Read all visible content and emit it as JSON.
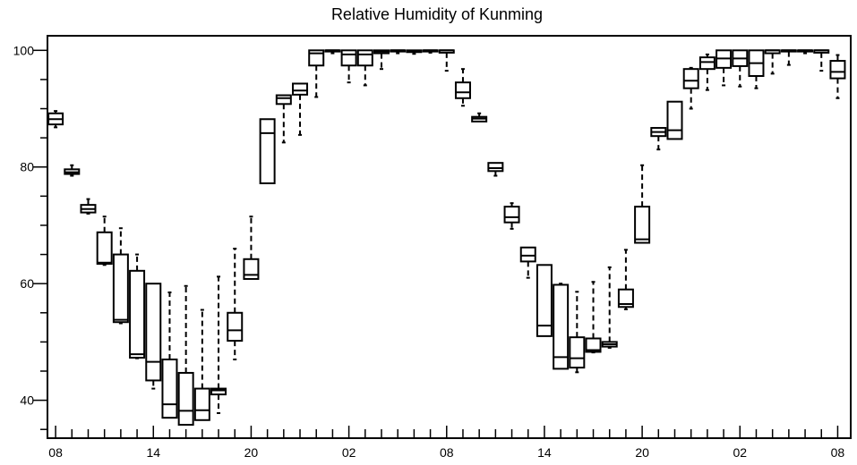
{
  "chart_data": {
    "type": "box",
    "title": "Relative Humidity of Kunming",
    "xlabel": "",
    "ylabel": "",
    "ylim": [
      33.5,
      102.5
    ],
    "y_major_ticks": [
      40,
      60,
      80,
      100
    ],
    "y_minor_step": 5,
    "x_tick_labels": [
      "08",
      "14",
      "20",
      "02",
      "08",
      "14",
      "20",
      "02",
      "08"
    ],
    "x_label_hours": [
      0,
      6,
      12,
      18,
      24,
      30,
      36,
      42,
      48
    ],
    "hour_range": [
      -0.5,
      48.8
    ],
    "grid": false,
    "legend": "none",
    "series": [
      {
        "hour": 0,
        "whisker_low": 86.8,
        "q1": 87.3,
        "median": 88.2,
        "q3": 89.2,
        "whisker_high": 89.6
      },
      {
        "hour": 1,
        "whisker_low": 78.5,
        "q1": 78.8,
        "median": 79.1,
        "q3": 79.6,
        "whisker_high": 80.3
      },
      {
        "hour": 2,
        "whisker_low": 72.0,
        "q1": 72.2,
        "median": 72.8,
        "q3": 73.5,
        "whisker_high": 74.5
      },
      {
        "hour": 3,
        "whisker_low": 63.2,
        "q1": 63.4,
        "median": 63.6,
        "q3": 68.8,
        "whisker_high": 71.5
      },
      {
        "hour": 4,
        "whisker_low": 53.2,
        "q1": 53.4,
        "median": 53.8,
        "q3": 65.0,
        "whisker_high": 69.5
      },
      {
        "hour": 5,
        "whisker_low": 47.2,
        "q1": 47.3,
        "median": 47.9,
        "q3": 62.2,
        "whisker_high": 65.0
      },
      {
        "hour": 6,
        "whisker_low": 42.0,
        "q1": 43.4,
        "median": 46.6,
        "q3": 60.0,
        "whisker_high": 60.0
      },
      {
        "hour": 7,
        "whisker_low": 37.0,
        "q1": 37.0,
        "median": 39.3,
        "q3": 47.0,
        "whisker_high": 58.5
      },
      {
        "hour": 8,
        "whisker_low": 35.8,
        "q1": 35.8,
        "median": 38.2,
        "q3": 44.7,
        "whisker_high": 59.6
      },
      {
        "hour": 9,
        "whisker_low": 36.6,
        "q1": 36.6,
        "median": 38.3,
        "q3": 42.0,
        "whisker_high": 55.5
      },
      {
        "hour": 10,
        "whisker_low": 37.8,
        "q1": 41.0,
        "median": 41.7,
        "q3": 42.0,
        "whisker_high": 61.2
      },
      {
        "hour": 11,
        "whisker_low": 47.0,
        "q1": 50.2,
        "median": 52.0,
        "q3": 55.0,
        "whisker_high": 66.0
      },
      {
        "hour": 12,
        "whisker_low": 60.8,
        "q1": 60.8,
        "median": 61.5,
        "q3": 64.2,
        "whisker_high": 71.5
      },
      {
        "hour": 13,
        "whisker_low": 77.2,
        "q1": 77.2,
        "median": 85.8,
        "q3": 88.2,
        "whisker_high": 88.2
      },
      {
        "hour": 14,
        "whisker_low": 84.2,
        "q1": 90.8,
        "median": 91.8,
        "q3": 92.3,
        "whisker_high": 92.3
      },
      {
        "hour": 15,
        "whisker_low": 85.5,
        "q1": 92.4,
        "median": 93.1,
        "q3": 94.3,
        "whisker_high": 94.3
      },
      {
        "hour": 16,
        "whisker_low": 92.0,
        "q1": 97.4,
        "median": 99.5,
        "q3": 100.0,
        "whisker_high": 100.0
      },
      {
        "hour": 17,
        "whisker_low": 99.5,
        "q1": 99.8,
        "median": 100.0,
        "q3": 100.0,
        "whisker_high": 100.0
      },
      {
        "hour": 18,
        "whisker_low": 94.5,
        "q1": 97.4,
        "median": 99.3,
        "q3": 100.0,
        "whisker_high": 100.0
      },
      {
        "hour": 19,
        "whisker_low": 94.0,
        "q1": 97.4,
        "median": 99.3,
        "q3": 100.0,
        "whisker_high": 100.0
      },
      {
        "hour": 20,
        "whisker_low": 96.8,
        "q1": 99.5,
        "median": 99.8,
        "q3": 100.0,
        "whisker_high": 100.0
      },
      {
        "hour": 21,
        "whisker_low": 99.5,
        "q1": 99.8,
        "median": 100.0,
        "q3": 100.0,
        "whisker_high": 100.0
      },
      {
        "hour": 22,
        "whisker_low": 99.4,
        "q1": 99.7,
        "median": 99.9,
        "q3": 100.0,
        "whisker_high": 100.0
      },
      {
        "hour": 23,
        "whisker_low": 99.6,
        "q1": 99.8,
        "median": 100.0,
        "q3": 100.0,
        "whisker_high": 100.0
      },
      {
        "hour": 24,
        "whisker_low": 96.5,
        "q1": 99.6,
        "median": 100.0,
        "q3": 100.0,
        "whisker_high": 100.0
      },
      {
        "hour": 25,
        "whisker_low": 90.5,
        "q1": 91.8,
        "median": 92.8,
        "q3": 94.5,
        "whisker_high": 96.8
      },
      {
        "hour": 26,
        "whisker_low": 87.8,
        "q1": 87.8,
        "median": 88.3,
        "q3": 88.6,
        "whisker_high": 89.2
      },
      {
        "hour": 27,
        "whisker_low": 78.5,
        "q1": 79.3,
        "median": 79.8,
        "q3": 80.7,
        "whisker_high": 80.7
      },
      {
        "hour": 28,
        "whisker_low": 69.4,
        "q1": 70.5,
        "median": 71.4,
        "q3": 73.2,
        "whisker_high": 73.8
      },
      {
        "hour": 29,
        "whisker_low": 61.0,
        "q1": 63.8,
        "median": 64.8,
        "q3": 66.2,
        "whisker_high": 66.2
      },
      {
        "hour": 30,
        "whisker_low": 51.0,
        "q1": 51.0,
        "median": 52.8,
        "q3": 63.2,
        "whisker_high": 63.2
      },
      {
        "hour": 31,
        "whisker_low": 45.4,
        "q1": 45.4,
        "median": 47.4,
        "q3": 59.8,
        "whisker_high": 60.0
      },
      {
        "hour": 32,
        "whisker_low": 44.8,
        "q1": 45.6,
        "median": 47.2,
        "q3": 50.8,
        "whisker_high": 58.6
      },
      {
        "hour": 33,
        "whisker_low": 48.2,
        "q1": 48.3,
        "median": 48.6,
        "q3": 50.6,
        "whisker_high": 60.3
      },
      {
        "hour": 34,
        "whisker_low": 49.0,
        "q1": 49.2,
        "median": 49.6,
        "q3": 50.0,
        "whisker_high": 62.8
      },
      {
        "hour": 35,
        "whisker_low": 55.6,
        "q1": 56.0,
        "median": 56.5,
        "q3": 59.0,
        "whisker_high": 65.8
      },
      {
        "hour": 36,
        "whisker_low": 67.0,
        "q1": 67.0,
        "median": 67.6,
        "q3": 73.2,
        "whisker_high": 80.3
      },
      {
        "hour": 37,
        "whisker_low": 83.0,
        "q1": 85.3,
        "median": 86.0,
        "q3": 86.7,
        "whisker_high": 86.7
      },
      {
        "hour": 38,
        "whisker_low": 84.8,
        "q1": 84.8,
        "median": 86.3,
        "q3": 91.2,
        "whisker_high": 91.2
      },
      {
        "hour": 39,
        "whisker_low": 90.0,
        "q1": 93.5,
        "median": 94.8,
        "q3": 96.8,
        "whisker_high": 97.0
      },
      {
        "hour": 40,
        "whisker_low": 93.2,
        "q1": 96.8,
        "median": 98.0,
        "q3": 98.8,
        "whisker_high": 99.3
      },
      {
        "hour": 41,
        "whisker_low": 94.0,
        "q1": 97.0,
        "median": 98.6,
        "q3": 100.0,
        "whisker_high": 100.0
      },
      {
        "hour": 42,
        "whisker_low": 93.8,
        "q1": 97.3,
        "median": 98.6,
        "q3": 100.0,
        "whisker_high": 100.0
      },
      {
        "hour": 43,
        "whisker_low": 93.5,
        "q1": 95.6,
        "median": 97.8,
        "q3": 100.0,
        "whisker_high": 100.0
      },
      {
        "hour": 44,
        "whisker_low": 96.0,
        "q1": 99.5,
        "median": 100.0,
        "q3": 100.0,
        "whisker_high": 100.0
      },
      {
        "hour": 45,
        "whisker_low": 97.5,
        "q1": 99.8,
        "median": 100.0,
        "q3": 100.0,
        "whisker_high": 100.0
      },
      {
        "hour": 46,
        "whisker_low": 99.5,
        "q1": 99.8,
        "median": 100.0,
        "q3": 100.0,
        "whisker_high": 100.0
      },
      {
        "hour": 47,
        "whisker_low": 96.5,
        "q1": 99.6,
        "median": 100.0,
        "q3": 100.0,
        "whisker_high": 100.0
      },
      {
        "hour": 48,
        "whisker_low": 91.8,
        "q1": 95.2,
        "median": 96.3,
        "q3": 98.2,
        "whisker_high": 99.2
      }
    ]
  }
}
